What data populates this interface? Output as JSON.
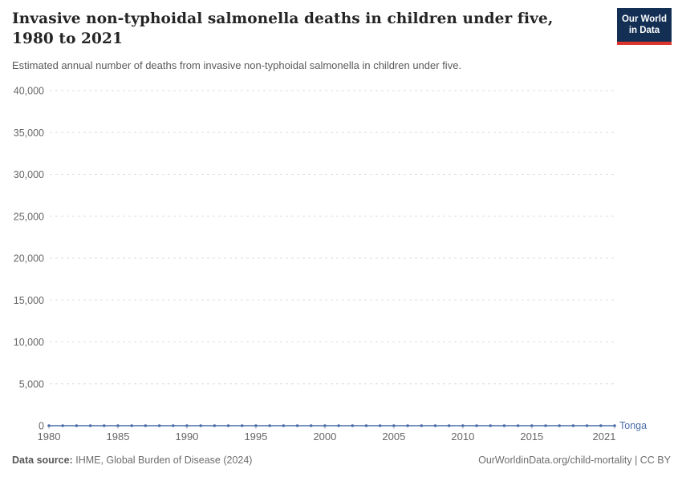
{
  "header": {
    "title": "Invasive non-typhoidal salmonella deaths in children under five, 1980 to 2021",
    "subtitle": "Estimated annual number of deaths from invasive non-typhoidal salmonella in children under five.",
    "logo": {
      "line1": "Our World",
      "line2": "in Data",
      "bg_color": "#132f54",
      "accent_color": "#dd352e"
    }
  },
  "chart_data": {
    "type": "line",
    "title": "Invasive non-typhoidal salmonella deaths in children under five, 1980 to 2021",
    "xlabel": "",
    "ylabel": "",
    "xlim": [
      1980,
      2021
    ],
    "ylim": [
      0,
      40000
    ],
    "grid": "horizontal-dashed",
    "legend_position": "end-of-line-label",
    "x_ticks": [
      1980,
      1985,
      1990,
      1995,
      2000,
      2005,
      2010,
      2015,
      2021
    ],
    "x_tick_labels": [
      "1980",
      "1985",
      "1990",
      "1995",
      "2000",
      "2005",
      "2010",
      "2015",
      "2021"
    ],
    "y_ticks": [
      0,
      5000,
      10000,
      15000,
      20000,
      25000,
      30000,
      35000,
      40000
    ],
    "y_tick_labels": [
      "0",
      "5,000",
      "10,000",
      "15,000",
      "20,000",
      "25,000",
      "30,000",
      "35,000",
      "40,000"
    ],
    "series": [
      {
        "name": "Tonga",
        "color": "#4c6da9",
        "x": [
          1980,
          1981,
          1982,
          1983,
          1984,
          1985,
          1986,
          1987,
          1988,
          1989,
          1990,
          1991,
          1992,
          1993,
          1994,
          1995,
          1996,
          1997,
          1998,
          1999,
          2000,
          2001,
          2002,
          2003,
          2004,
          2005,
          2006,
          2007,
          2008,
          2009,
          2010,
          2011,
          2012,
          2013,
          2014,
          2015,
          2016,
          2017,
          2018,
          2019,
          2020,
          2021
        ],
        "values": [
          0,
          0,
          0,
          0,
          0,
          0,
          0,
          0,
          0,
          0,
          0,
          0,
          0,
          0,
          0,
          0,
          0,
          0,
          0,
          0,
          0,
          0,
          0,
          0,
          0,
          0,
          0,
          0,
          0,
          0,
          0,
          0,
          0,
          0,
          0,
          0,
          0,
          0,
          0,
          0,
          0,
          0
        ]
      }
    ],
    "colors": {
      "gridline": "#dedede",
      "axis_text": "#666666",
      "tick_mark": "#bdbdbd"
    }
  },
  "footer": {
    "source_label": "Data source:",
    "source_text": "IHME, Global Burden of Disease (2024)",
    "credit": "OurWorldinData.org/child-mortality | CC BY"
  }
}
